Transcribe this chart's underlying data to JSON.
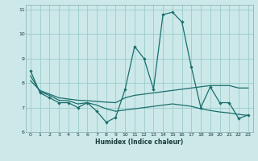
{
  "xlabel": "Humidex (Indice chaleur)",
  "bg_color": "#cce8e8",
  "grid_color": "#99cccc",
  "line_color": "#1a6e6e",
  "xlim": [
    -0.5,
    23.5
  ],
  "ylim": [
    6,
    11.2
  ],
  "yticks": [
    6,
    7,
    8,
    9,
    10,
    11
  ],
  "xticks": [
    0,
    1,
    2,
    3,
    4,
    5,
    6,
    7,
    8,
    9,
    10,
    11,
    12,
    13,
    14,
    15,
    16,
    17,
    18,
    19,
    20,
    21,
    22,
    23
  ],
  "line1_x": [
    0,
    1,
    2,
    3,
    4,
    5,
    6,
    7,
    8,
    9,
    10,
    11,
    12,
    13,
    14,
    15,
    16,
    17,
    18,
    19,
    20,
    21,
    22,
    23
  ],
  "line1_y": [
    8.5,
    7.6,
    7.4,
    7.2,
    7.2,
    7.0,
    7.2,
    6.85,
    6.4,
    6.6,
    7.75,
    9.5,
    9.0,
    7.75,
    10.8,
    10.9,
    10.5,
    8.65,
    7.0,
    7.85,
    7.2,
    7.2,
    6.55,
    6.7
  ],
  "line2_x": [
    0,
    1,
    2,
    3,
    4,
    5,
    6,
    7,
    8,
    9,
    10,
    11,
    12,
    13,
    14,
    15,
    16,
    17,
    18,
    19,
    20,
    21,
    22,
    23
  ],
  "line2_y": [
    8.1,
    7.7,
    7.55,
    7.4,
    7.35,
    7.3,
    7.28,
    7.25,
    7.22,
    7.2,
    7.4,
    7.5,
    7.55,
    7.6,
    7.65,
    7.7,
    7.75,
    7.8,
    7.85,
    7.9,
    7.9,
    7.9,
    7.8,
    7.8
  ],
  "line3_x": [
    0,
    1,
    2,
    3,
    4,
    5,
    6,
    7,
    8,
    9,
    10,
    11,
    12,
    13,
    14,
    15,
    16,
    17,
    18,
    19,
    20,
    21,
    22,
    23
  ],
  "line3_y": [
    8.3,
    7.65,
    7.5,
    7.3,
    7.28,
    7.15,
    7.2,
    7.1,
    6.95,
    6.85,
    6.9,
    6.95,
    7.0,
    7.05,
    7.1,
    7.15,
    7.1,
    7.05,
    6.95,
    6.88,
    6.82,
    6.78,
    6.72,
    6.68
  ]
}
